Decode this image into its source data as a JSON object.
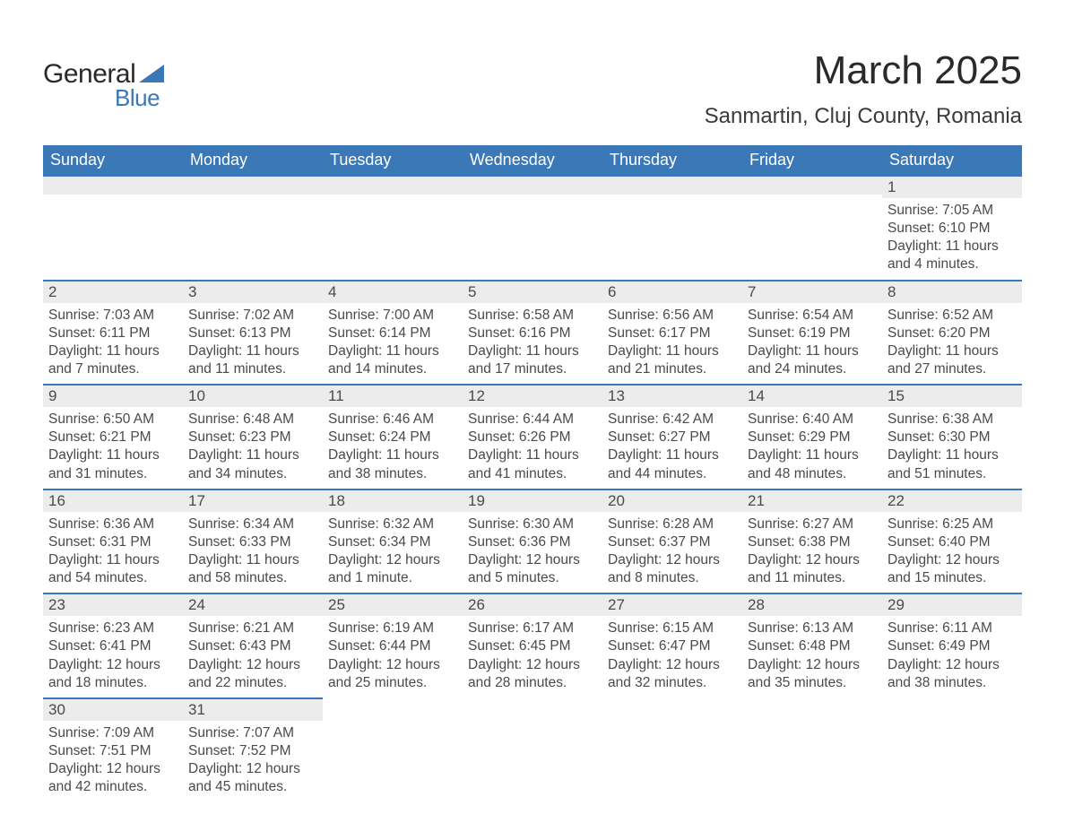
{
  "logo": {
    "text1": "General",
    "text2": "Blue",
    "shape_color": "#3a78b8"
  },
  "title": "March 2025",
  "location": "Sanmartin, Cluj County, Romania",
  "headers": [
    "Sunday",
    "Monday",
    "Tuesday",
    "Wednesday",
    "Thursday",
    "Friday",
    "Saturday"
  ],
  "colors": {
    "header_bg": "#3a78b8",
    "header_text": "#ffffff",
    "daynum_bg": "#ececec",
    "daynum_border": "#3a78b8",
    "body_text": "#4a4a4a"
  },
  "weeks": [
    [
      null,
      null,
      null,
      null,
      null,
      null,
      {
        "n": "1",
        "sunrise": "Sunrise: 7:05 AM",
        "sunset": "Sunset: 6:10 PM",
        "day1": "Daylight: 11 hours",
        "day2": "and 4 minutes."
      }
    ],
    [
      {
        "n": "2",
        "sunrise": "Sunrise: 7:03 AM",
        "sunset": "Sunset: 6:11 PM",
        "day1": "Daylight: 11 hours",
        "day2": "and 7 minutes."
      },
      {
        "n": "3",
        "sunrise": "Sunrise: 7:02 AM",
        "sunset": "Sunset: 6:13 PM",
        "day1": "Daylight: 11 hours",
        "day2": "and 11 minutes."
      },
      {
        "n": "4",
        "sunrise": "Sunrise: 7:00 AM",
        "sunset": "Sunset: 6:14 PM",
        "day1": "Daylight: 11 hours",
        "day2": "and 14 minutes."
      },
      {
        "n": "5",
        "sunrise": "Sunrise: 6:58 AM",
        "sunset": "Sunset: 6:16 PM",
        "day1": "Daylight: 11 hours",
        "day2": "and 17 minutes."
      },
      {
        "n": "6",
        "sunrise": "Sunrise: 6:56 AM",
        "sunset": "Sunset: 6:17 PM",
        "day1": "Daylight: 11 hours",
        "day2": "and 21 minutes."
      },
      {
        "n": "7",
        "sunrise": "Sunrise: 6:54 AM",
        "sunset": "Sunset: 6:19 PM",
        "day1": "Daylight: 11 hours",
        "day2": "and 24 minutes."
      },
      {
        "n": "8",
        "sunrise": "Sunrise: 6:52 AM",
        "sunset": "Sunset: 6:20 PM",
        "day1": "Daylight: 11 hours",
        "day2": "and 27 minutes."
      }
    ],
    [
      {
        "n": "9",
        "sunrise": "Sunrise: 6:50 AM",
        "sunset": "Sunset: 6:21 PM",
        "day1": "Daylight: 11 hours",
        "day2": "and 31 minutes."
      },
      {
        "n": "10",
        "sunrise": "Sunrise: 6:48 AM",
        "sunset": "Sunset: 6:23 PM",
        "day1": "Daylight: 11 hours",
        "day2": "and 34 minutes."
      },
      {
        "n": "11",
        "sunrise": "Sunrise: 6:46 AM",
        "sunset": "Sunset: 6:24 PM",
        "day1": "Daylight: 11 hours",
        "day2": "and 38 minutes."
      },
      {
        "n": "12",
        "sunrise": "Sunrise: 6:44 AM",
        "sunset": "Sunset: 6:26 PM",
        "day1": "Daylight: 11 hours",
        "day2": "and 41 minutes."
      },
      {
        "n": "13",
        "sunrise": "Sunrise: 6:42 AM",
        "sunset": "Sunset: 6:27 PM",
        "day1": "Daylight: 11 hours",
        "day2": "and 44 minutes."
      },
      {
        "n": "14",
        "sunrise": "Sunrise: 6:40 AM",
        "sunset": "Sunset: 6:29 PM",
        "day1": "Daylight: 11 hours",
        "day2": "and 48 minutes."
      },
      {
        "n": "15",
        "sunrise": "Sunrise: 6:38 AM",
        "sunset": "Sunset: 6:30 PM",
        "day1": "Daylight: 11 hours",
        "day2": "and 51 minutes."
      }
    ],
    [
      {
        "n": "16",
        "sunrise": "Sunrise: 6:36 AM",
        "sunset": "Sunset: 6:31 PM",
        "day1": "Daylight: 11 hours",
        "day2": "and 54 minutes."
      },
      {
        "n": "17",
        "sunrise": "Sunrise: 6:34 AM",
        "sunset": "Sunset: 6:33 PM",
        "day1": "Daylight: 11 hours",
        "day2": "and 58 minutes."
      },
      {
        "n": "18",
        "sunrise": "Sunrise: 6:32 AM",
        "sunset": "Sunset: 6:34 PM",
        "day1": "Daylight: 12 hours",
        "day2": "and 1 minute."
      },
      {
        "n": "19",
        "sunrise": "Sunrise: 6:30 AM",
        "sunset": "Sunset: 6:36 PM",
        "day1": "Daylight: 12 hours",
        "day2": "and 5 minutes."
      },
      {
        "n": "20",
        "sunrise": "Sunrise: 6:28 AM",
        "sunset": "Sunset: 6:37 PM",
        "day1": "Daylight: 12 hours",
        "day2": "and 8 minutes."
      },
      {
        "n": "21",
        "sunrise": "Sunrise: 6:27 AM",
        "sunset": "Sunset: 6:38 PM",
        "day1": "Daylight: 12 hours",
        "day2": "and 11 minutes."
      },
      {
        "n": "22",
        "sunrise": "Sunrise: 6:25 AM",
        "sunset": "Sunset: 6:40 PM",
        "day1": "Daylight: 12 hours",
        "day2": "and 15 minutes."
      }
    ],
    [
      {
        "n": "23",
        "sunrise": "Sunrise: 6:23 AM",
        "sunset": "Sunset: 6:41 PM",
        "day1": "Daylight: 12 hours",
        "day2": "and 18 minutes."
      },
      {
        "n": "24",
        "sunrise": "Sunrise: 6:21 AM",
        "sunset": "Sunset: 6:43 PM",
        "day1": "Daylight: 12 hours",
        "day2": "and 22 minutes."
      },
      {
        "n": "25",
        "sunrise": "Sunrise: 6:19 AM",
        "sunset": "Sunset: 6:44 PM",
        "day1": "Daylight: 12 hours",
        "day2": "and 25 minutes."
      },
      {
        "n": "26",
        "sunrise": "Sunrise: 6:17 AM",
        "sunset": "Sunset: 6:45 PM",
        "day1": "Daylight: 12 hours",
        "day2": "and 28 minutes."
      },
      {
        "n": "27",
        "sunrise": "Sunrise: 6:15 AM",
        "sunset": "Sunset: 6:47 PM",
        "day1": "Daylight: 12 hours",
        "day2": "and 32 minutes."
      },
      {
        "n": "28",
        "sunrise": "Sunrise: 6:13 AM",
        "sunset": "Sunset: 6:48 PM",
        "day1": "Daylight: 12 hours",
        "day2": "and 35 minutes."
      },
      {
        "n": "29",
        "sunrise": "Sunrise: 6:11 AM",
        "sunset": "Sunset: 6:49 PM",
        "day1": "Daylight: 12 hours",
        "day2": "and 38 minutes."
      }
    ],
    [
      {
        "n": "30",
        "sunrise": "Sunrise: 7:09 AM",
        "sunset": "Sunset: 7:51 PM",
        "day1": "Daylight: 12 hours",
        "day2": "and 42 minutes."
      },
      {
        "n": "31",
        "sunrise": "Sunrise: 7:07 AM",
        "sunset": "Sunset: 7:52 PM",
        "day1": "Daylight: 12 hours",
        "day2": "and 45 minutes."
      },
      null,
      null,
      null,
      null,
      null
    ]
  ]
}
